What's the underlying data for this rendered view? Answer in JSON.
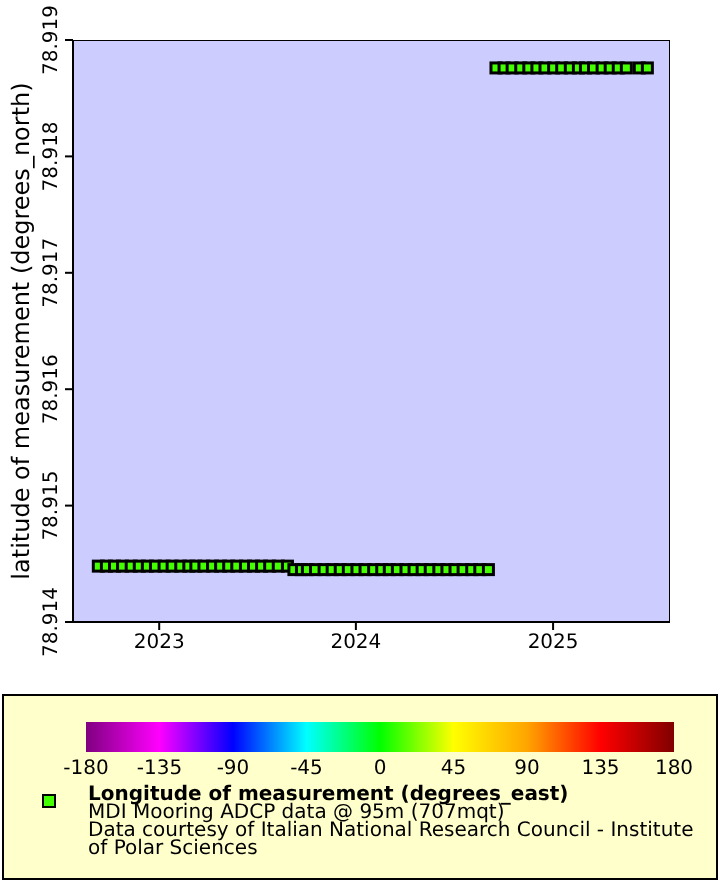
{
  "chart_data": {
    "type": "scatter",
    "ylabel": "latitude of measurement (degrees_north)",
    "clabel": "Longitude of measurement (degrees_east)",
    "annotations": [
      "MDI Mooring ADCP data @ 95m (707mqt)",
      "Data courtesy of Italian National Research Council - Institute of Polar Sciences"
    ],
    "xlim": [
      "2022-07-25",
      "2025-08-06"
    ],
    "xticks": [
      "2023",
      "2024",
      "2025"
    ],
    "ylim": [
      78.914,
      78.919
    ],
    "yticks": [
      78.914,
      78.915,
      78.916,
      78.917,
      78.918,
      78.919
    ],
    "clim": [
      -180,
      180
    ],
    "cticks": [
      -180,
      -135,
      -90,
      -45,
      0,
      45,
      90,
      135,
      180
    ],
    "marker": "square",
    "series": [
      {
        "x": [
          "2022-09-10",
          "2022-09-25",
          "2022-10-10",
          "2022-10-25",
          "2022-11-10",
          "2022-11-25",
          "2022-12-10",
          "2022-12-25",
          "2023-01-10",
          "2023-01-25",
          "2023-02-10",
          "2023-02-25",
          "2023-03-10",
          "2023-03-25",
          "2023-04-10",
          "2023-04-25",
          "2023-05-10",
          "2023-05-25",
          "2023-06-10",
          "2023-06-25",
          "2023-07-10",
          "2023-07-25",
          "2023-08-10",
          "2023-08-27"
        ],
        "values": [
          78.91448,
          78.91448,
          78.91448,
          78.91448,
          78.91448,
          78.91448,
          78.91448,
          78.91448,
          78.91448,
          78.91448,
          78.91448,
          78.91448,
          78.91448,
          78.91448,
          78.91448,
          78.91448,
          78.91448,
          78.91448,
          78.91448,
          78.91448,
          78.91448,
          78.91448,
          78.91448,
          78.91448
        ],
        "cvalues": [
          12,
          12,
          12,
          12,
          12,
          12,
          12,
          12,
          12,
          12,
          12,
          12,
          12,
          12,
          12,
          12,
          12,
          12,
          12,
          12,
          12,
          12,
          12,
          12
        ]
      },
      {
        "x": [
          "2023-09-08",
          "2023-09-22",
          "2023-10-03",
          "2023-10-18",
          "2023-11-03",
          "2023-11-18",
          "2023-12-03",
          "2023-12-18",
          "2024-01-03",
          "2024-01-18",
          "2024-02-03",
          "2024-02-18",
          "2024-03-03",
          "2024-03-18",
          "2024-04-03",
          "2024-04-18",
          "2024-05-03",
          "2024-05-18",
          "2024-06-03",
          "2024-06-18",
          "2024-07-03",
          "2024-07-18",
          "2024-08-03",
          "2024-08-18",
          "2024-09-03"
        ],
        "values": [
          78.91445,
          78.91445,
          78.91445,
          78.91445,
          78.91445,
          78.91445,
          78.91445,
          78.91445,
          78.91445,
          78.91445,
          78.91445,
          78.91445,
          78.91445,
          78.91445,
          78.91445,
          78.91445,
          78.91445,
          78.91445,
          78.91445,
          78.91445,
          78.91445,
          78.91445,
          78.91445,
          78.91445,
          78.91445
        ],
        "cvalues": [
          12,
          12,
          12,
          12,
          12,
          12,
          12,
          12,
          12,
          12,
          12,
          12,
          12,
          12,
          12,
          12,
          12,
          12,
          12,
          12,
          12,
          12,
          12,
          12,
          12
        ]
      },
      {
        "x": [
          "2024-09-17",
          "2024-10-02",
          "2024-10-17",
          "2024-11-02",
          "2024-11-17",
          "2024-12-02",
          "2024-12-17",
          "2025-01-02",
          "2025-01-17",
          "2025-02-02",
          "2025-02-17",
          "2025-03-02",
          "2025-03-17",
          "2025-04-02",
          "2025-04-17",
          "2025-05-02",
          "2025-05-17",
          "2025-06-10",
          "2025-06-25"
        ],
        "values": [
          78.91876,
          78.91876,
          78.91876,
          78.91876,
          78.91876,
          78.91876,
          78.91876,
          78.91876,
          78.91876,
          78.91876,
          78.91876,
          78.91876,
          78.91876,
          78.91876,
          78.91876,
          78.91876,
          78.91876,
          78.91876,
          78.91876
        ],
        "cvalues": [
          12,
          12,
          12,
          12,
          12,
          12,
          12,
          12,
          12,
          12,
          12,
          12,
          12,
          12,
          12,
          12,
          12,
          12,
          12
        ]
      }
    ]
  }
}
